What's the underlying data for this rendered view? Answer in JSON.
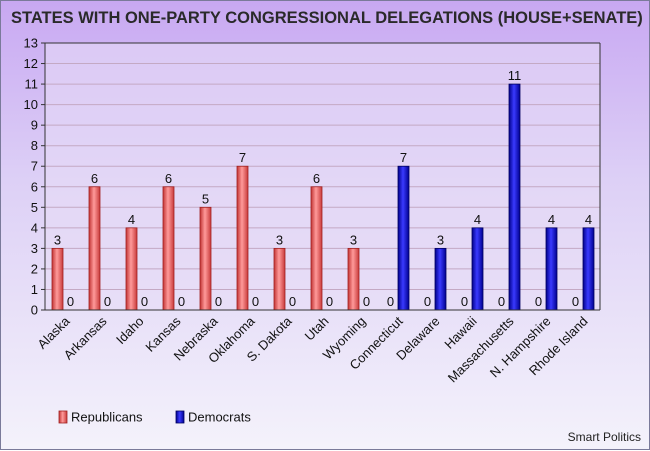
{
  "chart_data": {
    "type": "bar",
    "title": "STATES WITH ONE-PARTY CONGRESSIONAL DELEGATIONS (HOUSE+SENATE)",
    "categories": [
      "Alaska",
      "Arkansas",
      "Idaho",
      "Kansas",
      "Nebraska",
      "Oklahoma",
      "S. Dakota",
      "Utah",
      "Wyoming",
      "Connecticut",
      "Delaware",
      "Hawaii",
      "Massachusetts",
      "N. Hampshire",
      "Rhode Island"
    ],
    "series": [
      {
        "name": "Republicans",
        "color": "#e05050",
        "values": [
          3,
          6,
          4,
          6,
          5,
          7,
          3,
          6,
          3,
          0,
          0,
          0,
          0,
          0,
          0
        ]
      },
      {
        "name": "Democrats",
        "color": "#1010d8",
        "values": [
          0,
          0,
          0,
          0,
          0,
          0,
          0,
          0,
          0,
          7,
          3,
          4,
          11,
          4,
          4
        ]
      }
    ],
    "ylim": [
      0,
      13
    ],
    "y_ticks": [
      0,
      1,
      2,
      3,
      4,
      5,
      6,
      7,
      8,
      9,
      10,
      11,
      12,
      13
    ],
    "grid": true,
    "legend": "bottom-left",
    "source": "Smart Politics"
  }
}
